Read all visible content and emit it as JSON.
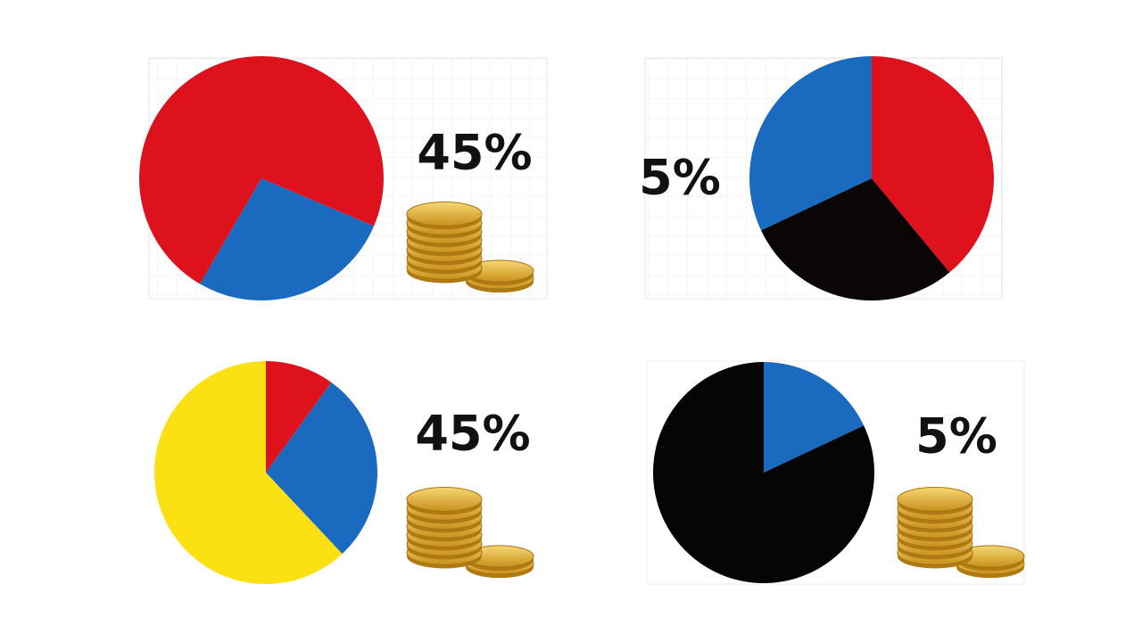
{
  "chart_data": [
    {
      "type": "pie",
      "start_angle": 113,
      "values": [
        27,
        73
      ],
      "colors": [
        "#1a6bbf",
        "#de121c"
      ],
      "annotation": "45%"
    },
    {
      "type": "pie",
      "start_angle": 0,
      "values": [
        39,
        29,
        32
      ],
      "colors": [
        "#de121c",
        "#0a0606",
        "#1a6bbf"
      ],
      "annotation": "5%"
    },
    {
      "type": "pie",
      "start_angle": 0,
      "values": [
        10,
        28,
        62
      ],
      "colors": [
        "#de121c",
        "#1a6bbf",
        "#fbe014"
      ],
      "annotation": "45%"
    },
    {
      "type": "pie",
      "start_angle": 0,
      "values": [
        18,
        82
      ],
      "colors": [
        "#1a6bbf",
        "#050505"
      ],
      "annotation": "5%"
    }
  ]
}
